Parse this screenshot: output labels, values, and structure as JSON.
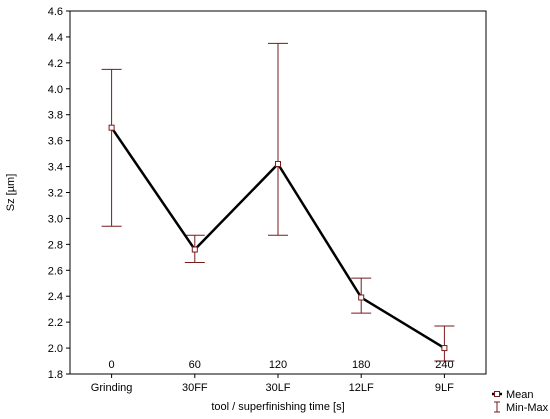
{
  "chart_data": {
    "type": "line",
    "categories": [
      "Grinding",
      "30FF",
      "30LF",
      "12LF",
      "9LF"
    ],
    "time_labels": [
      "0",
      "60",
      "120",
      "180",
      "240"
    ],
    "series": [
      {
        "name": "Mean",
        "values": [
          3.7,
          2.76,
          3.42,
          2.39,
          2.0
        ],
        "min": [
          2.94,
          2.66,
          2.87,
          2.27,
          1.9
        ],
        "max": [
          4.15,
          2.87,
          4.35,
          2.54,
          2.17
        ]
      }
    ],
    "xlabel": "tool / superfinishing time [s]",
    "ylabel": "Sz [µm]",
    "ylim": [
      1.8,
      4.6
    ],
    "yticks": [
      "1.8",
      "2.0",
      "2.2",
      "2.4",
      "2.6",
      "2.8",
      "3.0",
      "3.2",
      "3.4",
      "3.6",
      "3.8",
      "4.0",
      "4.2",
      "4.4",
      "4.6"
    ],
    "legend": {
      "placement": "bottom-right",
      "entries": [
        "Mean",
        "Min-Max"
      ]
    },
    "grid": false,
    "colors": {
      "line": "#000000",
      "errorbar": "#7a1a1a",
      "axis": "#000000"
    }
  }
}
